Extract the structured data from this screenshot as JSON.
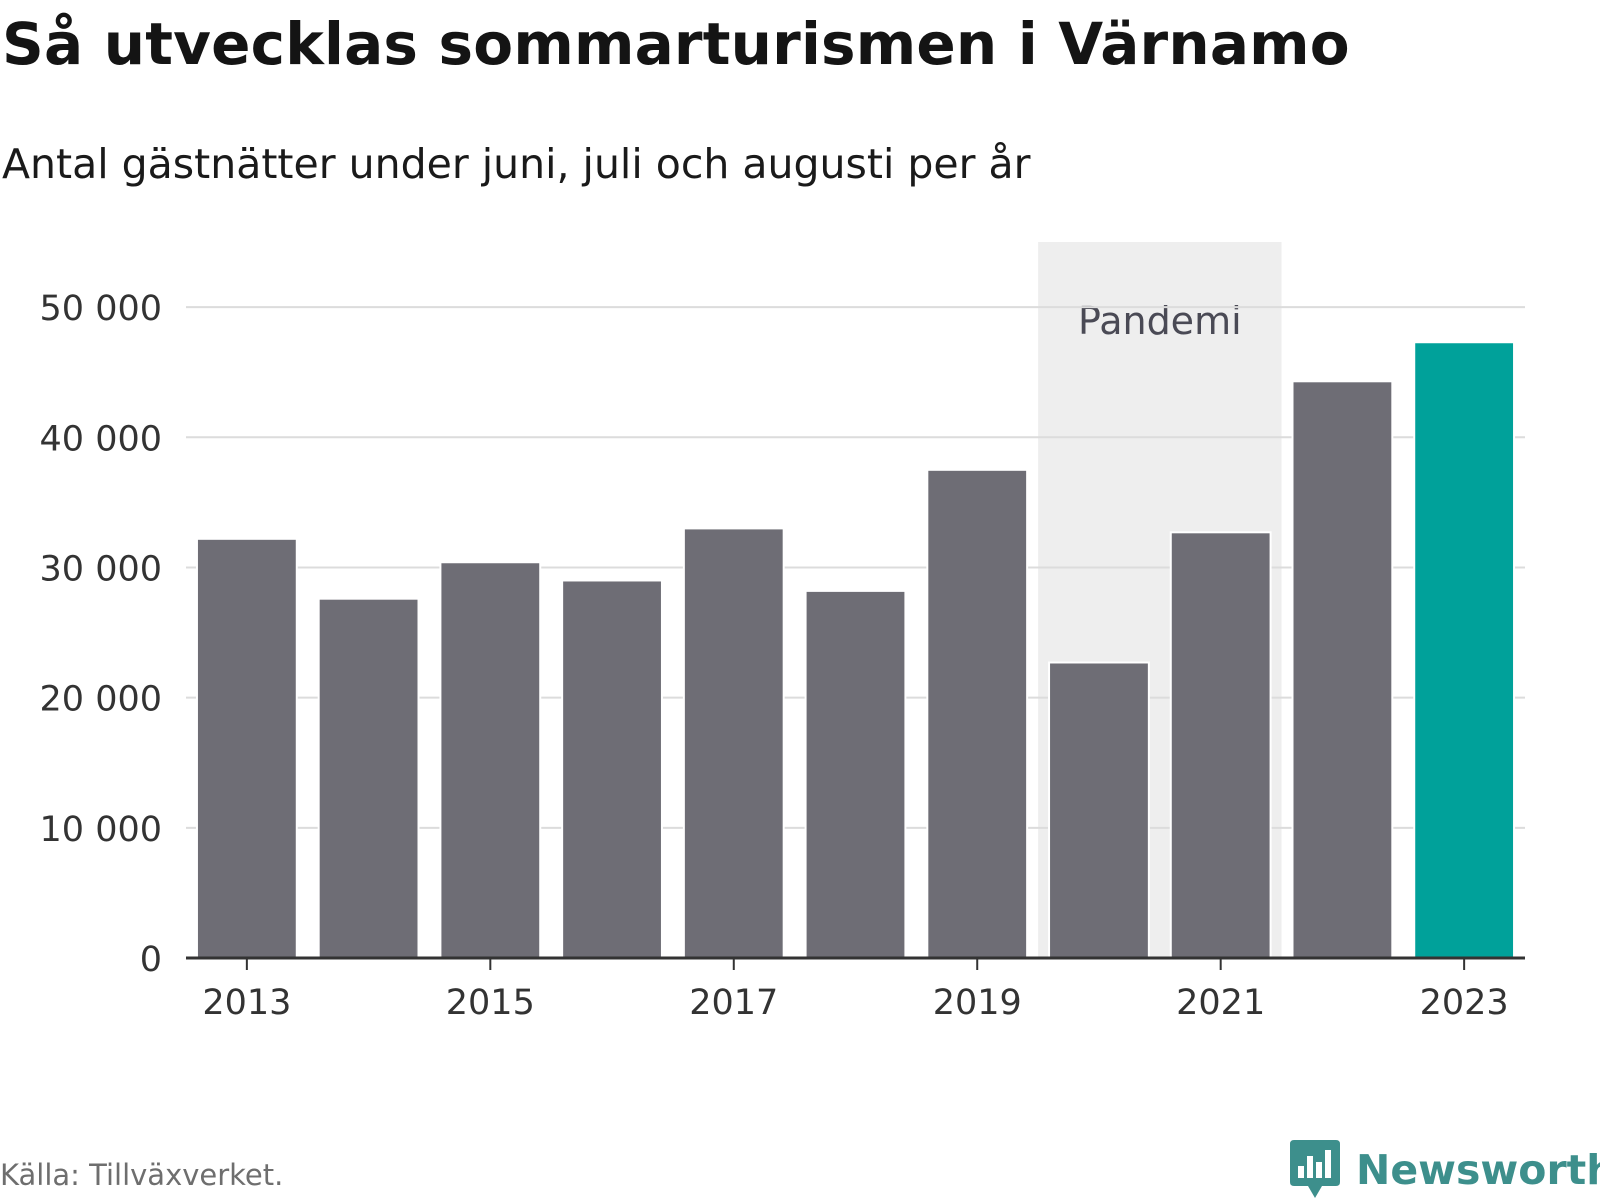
{
  "title": "Så utvecklas sommarturismen i Värnamo",
  "subtitle": "Antal gästnätter under juni, juli och augusti per år",
  "source": "Källa: Tillväxverket.",
  "brand": {
    "name": "Newsworthy",
    "icon": "newsworthy-chart-bubble-icon",
    "color": "#3d8f8c"
  },
  "colors": {
    "bar": "#6e6d75",
    "highlight": "#00a19a",
    "band": "#eeeeee",
    "grid": "#dcdcdc",
    "axis": "#333333",
    "annotation": "#4a4a55"
  },
  "chart_data": {
    "type": "bar",
    "x": [
      2013,
      2014,
      2015,
      2016,
      2017,
      2018,
      2019,
      2020,
      2021,
      2022,
      2023
    ],
    "values": [
      32200,
      27600,
      30400,
      29000,
      33000,
      28200,
      37500,
      22700,
      32700,
      44300,
      47300
    ],
    "highlight": [
      2023
    ],
    "ylim": [
      0,
      55000
    ],
    "yticks": [
      0,
      10000,
      20000,
      30000,
      40000,
      50000
    ],
    "ytick_labels": [
      "0",
      "10 000",
      "20 000",
      "30 000",
      "40 000",
      "50 000"
    ],
    "xticks": [
      2013,
      2015,
      2017,
      2019,
      2021,
      2023
    ],
    "xtick_labels": [
      "2013",
      "2015",
      "2017",
      "2019",
      "2021",
      "2023"
    ],
    "grid": true,
    "annotations": [
      {
        "label": "Pandemi",
        "x_from": 2020,
        "x_to": 2021,
        "type": "band"
      }
    ]
  }
}
